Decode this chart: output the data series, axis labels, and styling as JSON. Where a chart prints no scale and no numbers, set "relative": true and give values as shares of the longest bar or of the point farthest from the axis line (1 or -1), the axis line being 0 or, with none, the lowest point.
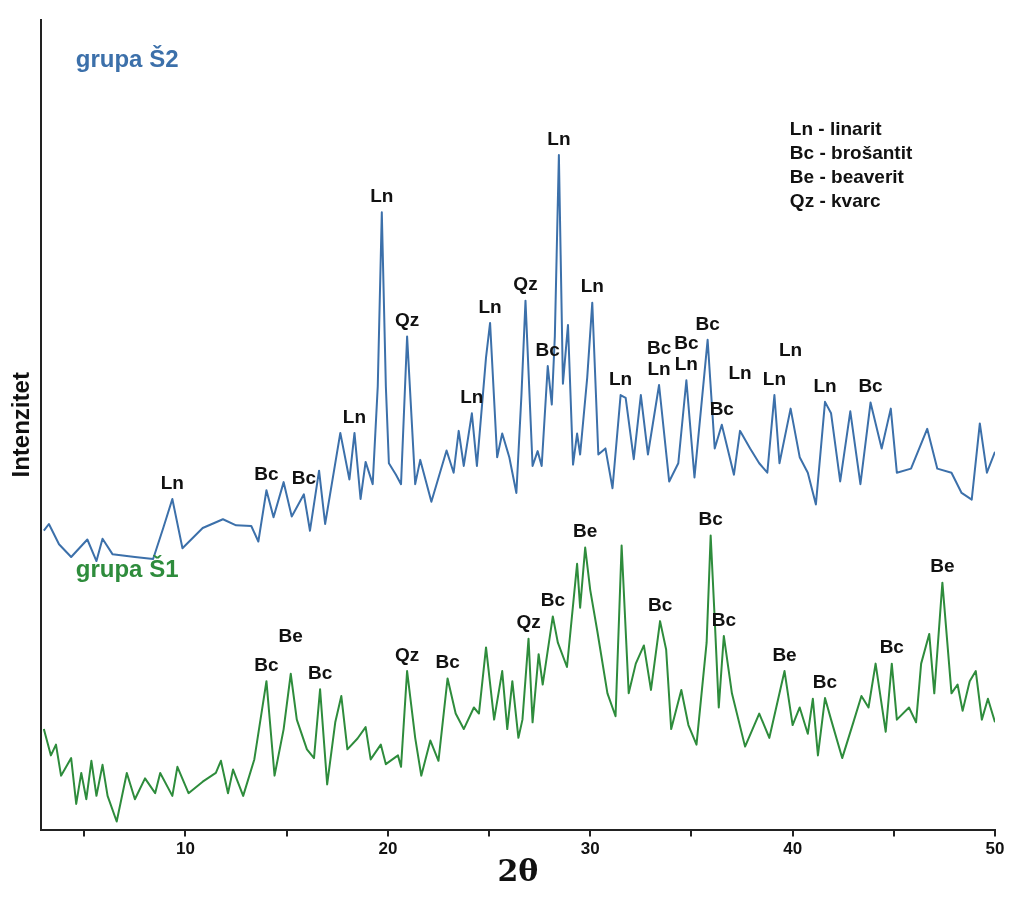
{
  "chart_data": {
    "type": "line",
    "xlabel": "2θ",
    "ylabel": "Intenzitet",
    "relative": true,
    "tick_labels": "x",
    "legend": false,
    "grid": false,
    "marker": "none",
    "line_style": "solid",
    "xlim": [
      2.85,
      50
    ],
    "xticks": [
      {
        "value": 5,
        "label": null
      },
      10,
      {
        "value": 15,
        "label": null
      },
      20,
      {
        "value": 25,
        "label": null
      },
      30,
      {
        "value": 35,
        "label": null
      },
      40,
      {
        "value": 45,
        "label": null
      },
      50
    ],
    "series": [
      {
        "name": "grupa Š2",
        "color": "#3c70aa",
        "x": [
          3.0,
          3.25,
          3.75,
          4.35,
          5.15,
          5.6,
          5.9,
          6.4,
          7.5,
          8.4,
          8.9,
          9.35,
          9.85,
          10.85,
          11.85,
          12.5,
          13.25,
          13.6,
          14.0,
          14.35,
          14.85,
          15.25,
          15.85,
          16.15,
          16.6,
          16.9,
          17.65,
          18.1,
          18.35,
          18.65,
          18.9,
          19.25,
          19.5,
          19.7,
          19.9,
          20.05,
          20.4,
          20.65,
          20.95,
          21.35,
          21.6,
          22.15,
          22.9,
          23.25,
          23.5,
          23.75,
          24.15,
          24.4,
          24.85,
          25.05,
          25.4,
          25.65,
          26.0,
          26.35,
          26.6,
          26.8,
          27.15,
          27.4,
          27.6,
          27.9,
          28.1,
          28.25,
          28.45,
          28.65,
          28.9,
          29.15,
          29.35,
          29.5,
          29.85,
          30.1,
          30.4,
          30.75,
          31.1,
          31.5,
          31.75,
          32.15,
          32.5,
          32.85,
          33.4,
          33.9,
          34.35,
          34.75,
          35.15,
          35.8,
          36.15,
          36.5,
          37.1,
          37.4,
          37.9,
          38.35,
          38.75,
          39.1,
          39.35,
          39.9,
          40.35,
          40.75,
          41.15,
          41.6,
          41.9,
          42.35,
          42.85,
          43.35,
          43.85,
          44.4,
          44.85,
          45.15,
          45.85,
          46.65,
          47.15,
          47.85,
          48.35,
          48.85,
          49.25,
          49.6,
          50.0
        ],
        "values": [
          0.443,
          0.453,
          0.423,
          0.404,
          0.43,
          0.398,
          0.431,
          0.408,
          0.404,
          0.401,
          0.447,
          0.49,
          0.417,
          0.447,
          0.46,
          0.451,
          0.45,
          0.427,
          0.503,
          0.463,
          0.515,
          0.464,
          0.497,
          0.443,
          0.532,
          0.453,
          0.588,
          0.519,
          0.588,
          0.49,
          0.545,
          0.512,
          0.657,
          0.915,
          0.657,
          0.543,
          0.526,
          0.512,
          0.731,
          0.512,
          0.548,
          0.486,
          0.562,
          0.529,
          0.591,
          0.539,
          0.617,
          0.539,
          0.7,
          0.751,
          0.552,
          0.587,
          0.552,
          0.499,
          0.644,
          0.784,
          0.539,
          0.561,
          0.539,
          0.687,
          0.63,
          0.731,
          1,
          0.661,
          0.748,
          0.541,
          0.587,
          0.556,
          0.67,
          0.781,
          0.556,
          0.565,
          0.506,
          0.644,
          0.64,
          0.549,
          0.644,
          0.556,
          0.659,
          0.516,
          0.543,
          0.666,
          0.522,
          0.726,
          0.565,
          0.6,
          0.526,
          0.591,
          0.565,
          0.543,
          0.529,
          0.644,
          0.543,
          0.624,
          0.552,
          0.529,
          0.482,
          0.634,
          0.617,
          0.516,
          0.62,
          0.512,
          0.633,
          0.565,
          0.624,
          0.529,
          0.535,
          0.594,
          0.535,
          0.529,
          0.499,
          0.489,
          0.602,
          0.529,
          0.56
        ]
      },
      {
        "name": "grupa Š1",
        "color": "#2e8c3c",
        "x": [
          3.0,
          3.35,
          3.6,
          3.85,
          4.35,
          4.6,
          4.85,
          5.1,
          5.35,
          5.6,
          5.9,
          6.15,
          6.6,
          7.1,
          7.5,
          8.0,
          8.5,
          8.75,
          9.35,
          9.6,
          10.15,
          10.85,
          11.5,
          11.75,
          12.1,
          12.35,
          12.85,
          13.4,
          14.0,
          14.4,
          14.85,
          15.2,
          15.5,
          16.0,
          16.35,
          16.65,
          17.0,
          17.4,
          17.7,
          18.0,
          18.5,
          18.9,
          19.15,
          19.65,
          19.9,
          20.5,
          20.65,
          20.95,
          21.35,
          21.65,
          22.1,
          22.5,
          22.95,
          23.35,
          23.75,
          24.25,
          24.5,
          24.85,
          25.25,
          25.65,
          25.9,
          26.15,
          26.45,
          26.65,
          26.95,
          27.15,
          27.45,
          27.65,
          28.15,
          28.4,
          28.85,
          29.35,
          29.5,
          29.75,
          30.0,
          30.35,
          30.85,
          31.25,
          31.55,
          31.9,
          32.25,
          32.65,
          33.0,
          33.45,
          33.75,
          34.0,
          34.5,
          34.85,
          35.25,
          35.75,
          35.95,
          36.15,
          36.35,
          36.6,
          37.0,
          37.65,
          38.35,
          38.85,
          39.6,
          40.0,
          40.35,
          40.75,
          41.0,
          41.25,
          41.6,
          41.9,
          42.45,
          43.0,
          43.4,
          43.75,
          44.1,
          44.6,
          44.9,
          45.15,
          45.75,
          46.1,
          46.35,
          46.75,
          47.0,
          47.4,
          47.85,
          48.15,
          48.4,
          48.75,
          49.05,
          49.35,
          49.65,
          50.0
        ],
        "values": [
          0.149,
          0.11,
          0.126,
          0.08,
          0.106,
          0.038,
          0.084,
          0.045,
          0.102,
          0.05,
          0.096,
          0.05,
          0.012,
          0.084,
          0.045,
          0.076,
          0.054,
          0.084,
          0.05,
          0.093,
          0.054,
          0.071,
          0.084,
          0.102,
          0.054,
          0.089,
          0.05,
          0.104,
          0.22,
          0.08,
          0.149,
          0.231,
          0.163,
          0.119,
          0.106,
          0.208,
          0.067,
          0.159,
          0.198,
          0.119,
          0.135,
          0.152,
          0.104,
          0.126,
          0.097,
          0.11,
          0.093,
          0.235,
          0.136,
          0.08,
          0.132,
          0.102,
          0.224,
          0.172,
          0.149,
          0.181,
          0.172,
          0.27,
          0.163,
          0.235,
          0.149,
          0.22,
          0.136,
          0.163,
          0.283,
          0.159,
          0.26,
          0.215,
          0.316,
          0.277,
          0.241,
          0.394,
          0.329,
          0.418,
          0.355,
          0.294,
          0.202,
          0.168,
          0.421,
          0.202,
          0.246,
          0.273,
          0.207,
          0.309,
          0.267,
          0.149,
          0.207,
          0.155,
          0.126,
          0.277,
          0.436,
          0.312,
          0.181,
          0.287,
          0.202,
          0.123,
          0.172,
          0.136,
          0.235,
          0.155,
          0.181,
          0.142,
          0.194,
          0.11,
          0.195,
          0.163,
          0.106,
          0.159,
          0.198,
          0.181,
          0.246,
          0.145,
          0.246,
          0.163,
          0.181,
          0.159,
          0.246,
          0.29,
          0.202,
          0.366,
          0.202,
          0.215,
          0.176,
          0.22,
          0.235,
          0.163,
          0.194,
          0.159
        ]
      }
    ],
    "annotations": [
      {
        "text": "Ln",
        "x": 9.35,
        "y": 0.49
      },
      {
        "text": "Bc",
        "x": 14.0,
        "y": 0.503
      },
      {
        "text": "Bc",
        "x": 15.85,
        "y": 0.497
      },
      {
        "text": "Ln",
        "x": 18.35,
        "y": 0.588
      },
      {
        "text": "Ln",
        "x": 19.7,
        "y": 0.915
      },
      {
        "text": "Qz",
        "x": 20.95,
        "y": 0.731
      },
      {
        "text": "Ln",
        "x": 24.15,
        "y": 0.617
      },
      {
        "text": "Ln",
        "x": 25.05,
        "y": 0.751
      },
      {
        "text": "Qz",
        "x": 26.8,
        "y": 0.784
      },
      {
        "text": "Bc",
        "x": 27.9,
        "y": 0.687
      },
      {
        "text": "Ln",
        "x": 28.45,
        "y": 1
      },
      {
        "text": "Ln",
        "x": 30.1,
        "y": 0.781
      },
      {
        "text": "Ln",
        "x": 31.5,
        "y": 0.644
      },
      {
        "text": "Ln",
        "x": 33.4,
        "y": 0.659
      },
      {
        "text": "Bc",
        "x": 33.4,
        "y": 0.659
      },
      {
        "text": "Ln",
        "x": 34.75,
        "y": 0.666
      },
      {
        "text": "Bc",
        "x": 34.75,
        "y": 0.666
      },
      {
        "text": "Bc",
        "x": 35.8,
        "y": 0.726
      },
      {
        "text": "Bc",
        "x": 36.5,
        "y": 0.6
      },
      {
        "text": "Ln",
        "x": 37.4,
        "y": 0.591
      },
      {
        "text": "Ln",
        "x": 39.1,
        "y": 0.644
      },
      {
        "text": "Ln",
        "x": 39.9,
        "y": 0.624
      },
      {
        "text": "Ln",
        "x": 41.6,
        "y": 0.634
      },
      {
        "text": "Bc",
        "x": 43.85,
        "y": 0.633
      },
      {
        "text": "Bc",
        "x": 14.0,
        "y": 0.22
      },
      {
        "text": "Be",
        "x": 15.2,
        "y": 0.231
      },
      {
        "text": "Bc",
        "x": 16.65,
        "y": 0.208
      },
      {
        "text": "Qz",
        "x": 20.95,
        "y": 0.235
      },
      {
        "text": "Bc",
        "x": 22.95,
        "y": 0.224
      },
      {
        "text": "Qz",
        "x": 26.95,
        "y": 0.283
      },
      {
        "text": "Bc",
        "x": 28.15,
        "y": 0.316
      },
      {
        "text": "Be",
        "x": 29.75,
        "y": 0.418
      },
      {
        "text": "Bc",
        "x": 33.45,
        "y": 0.309
      },
      {
        "text": "Bc",
        "x": 35.95,
        "y": 0.436
      },
      {
        "text": "Bc",
        "x": 36.6,
        "y": 0.287
      },
      {
        "text": "Be",
        "x": 39.6,
        "y": 0.235
      },
      {
        "text": "Bc",
        "x": 41.6,
        "y": 0.195
      },
      {
        "text": "Bc",
        "x": 44.9,
        "y": 0.246
      },
      {
        "text": "Be",
        "x": 47.4,
        "y": 0.366
      },
      "Ln - linarit",
      "Bc - brošantit",
      "Be - beaverit",
      "Qz - kvarc"
    ]
  }
}
